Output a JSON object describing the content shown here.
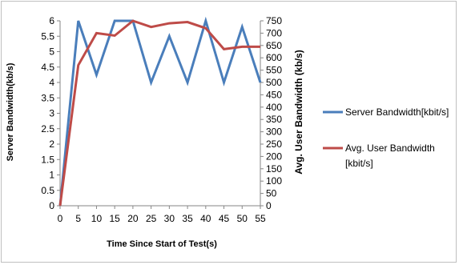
{
  "chart_data": {
    "type": "line",
    "x": [
      0,
      5,
      10,
      15,
      20,
      25,
      30,
      35,
      40,
      45,
      50,
      55
    ],
    "xlabel": "Time Since Start of Test(s)",
    "ylabel": "Server Bandwidth(kb/s)",
    "y2label": "Avg. User Bandwidth (kb/s)",
    "ylim": [
      0,
      6
    ],
    "y2lim": [
      0,
      750
    ],
    "x_ticks": [
      "0",
      "5",
      "10",
      "15",
      "20",
      "25",
      "30",
      "35",
      "40",
      "45",
      "50",
      "55"
    ],
    "y_ticks": [
      "0",
      "0.5",
      "1",
      "1.5",
      "2",
      "2.5",
      "3",
      "3.5",
      "4",
      "4.5",
      "5",
      "5.5",
      "6"
    ],
    "y2_ticks": [
      "0",
      "50",
      "100",
      "150",
      "200",
      "250",
      "300",
      "350",
      "400",
      "450",
      "500",
      "550",
      "600",
      "650",
      "700",
      "750"
    ],
    "grid": false,
    "legend_position": "right",
    "series": [
      {
        "name": "Server Bandwidth[kbit/s]",
        "axis": "left",
        "color": "#4a7ebb",
        "values": [
          0,
          6,
          4.25,
          6,
          6,
          4,
          5.5,
          4,
          6,
          4,
          5.8,
          4
        ]
      },
      {
        "name": "Avg. User Bandwidth [kbit/s]",
        "axis": "right",
        "color": "#be4b48",
        "values": [
          0,
          570,
          700,
          690,
          750,
          725,
          740,
          745,
          720,
          635,
          645,
          645
        ]
      }
    ]
  }
}
